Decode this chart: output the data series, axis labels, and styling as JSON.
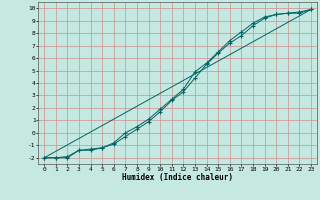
{
  "xlabel": "Humidex (Indice chaleur)",
  "ylabel": "",
  "xlim": [
    -0.5,
    23.5
  ],
  "ylim": [
    -2.5,
    10.5
  ],
  "xticks": [
    0,
    1,
    2,
    3,
    4,
    5,
    6,
    7,
    8,
    9,
    10,
    11,
    12,
    13,
    14,
    15,
    16,
    17,
    18,
    19,
    20,
    21,
    22,
    23
  ],
  "yticks": [
    -2,
    -1,
    0,
    1,
    2,
    3,
    4,
    5,
    6,
    7,
    8,
    9,
    10
  ],
  "bg_color": "#c5e8e0",
  "line_color": "#006666",
  "grid_color": "#d09090",
  "line1_x": [
    0,
    1,
    2,
    3,
    4,
    5,
    6,
    7,
    8,
    9,
    10,
    11,
    12,
    13,
    14,
    15,
    16,
    17,
    18,
    19,
    20,
    21,
    22,
    23
  ],
  "line1_y": [
    -2.0,
    -2.0,
    -2.0,
    -1.4,
    -1.3,
    -1.2,
    -0.9,
    -0.3,
    0.3,
    0.9,
    1.7,
    2.6,
    3.3,
    4.4,
    5.5,
    6.4,
    7.2,
    7.8,
    8.6,
    9.2,
    9.5,
    9.6,
    9.6,
    9.9
  ],
  "line2_x": [
    0,
    1,
    2,
    3,
    4,
    5,
    6,
    7,
    8,
    9,
    10,
    11,
    12,
    13,
    14,
    15,
    16,
    17,
    18,
    19,
    20,
    21,
    22,
    23
  ],
  "line2_y": [
    -2.0,
    -2.0,
    -1.9,
    -1.4,
    -1.4,
    -1.2,
    -0.8,
    0.0,
    0.5,
    1.1,
    1.9,
    2.7,
    3.5,
    4.9,
    5.6,
    6.5,
    7.4,
    8.1,
    8.8,
    9.3,
    9.5,
    9.6,
    9.7,
    9.9
  ],
  "line3_x": [
    0,
    23
  ],
  "line3_y": [
    -2.0,
    9.9
  ]
}
